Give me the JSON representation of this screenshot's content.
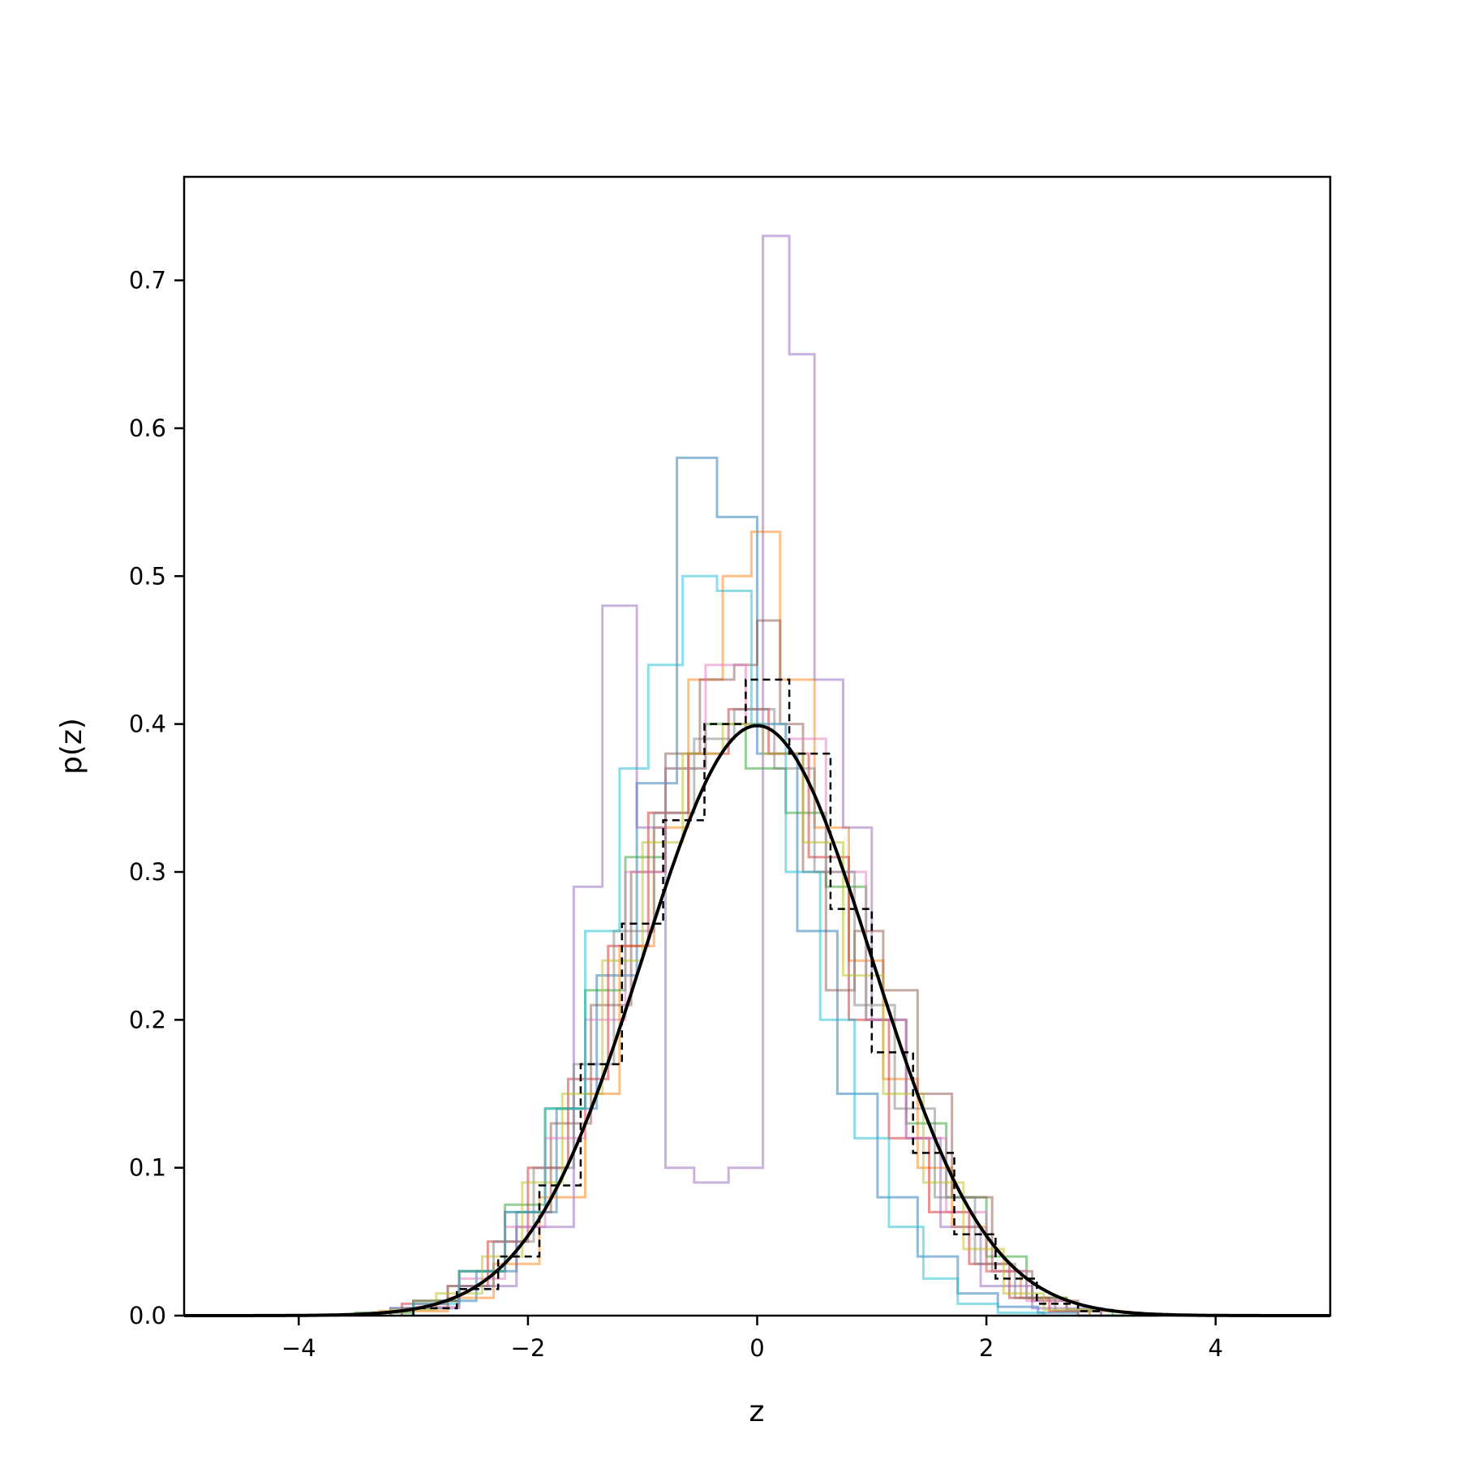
{
  "chart_data": {
    "type": "line",
    "title": "",
    "xlabel": "z",
    "ylabel": "p(z)",
    "xlim": [
      -5,
      5
    ],
    "ylim": [
      0,
      0.77
    ],
    "x_ticks": [
      -4,
      -2,
      0,
      2,
      4
    ],
    "x_tick_labels": [
      "−4",
      "−2",
      "0",
      "2",
      "4"
    ],
    "y_ticks": [
      0.0,
      0.1,
      0.2,
      0.3,
      0.4,
      0.5,
      0.6,
      0.7
    ],
    "y_tick_labels": [
      "0.0",
      "0.1",
      "0.2",
      "0.3",
      "0.4",
      "0.5",
      "0.6",
      "0.7"
    ],
    "grid": false,
    "legend": "none",
    "curve": {
      "kind": "standard normal density",
      "mean": 0,
      "std": 1,
      "color": "#000000"
    },
    "histograms": [
      {
        "color": "#000000",
        "style": "dashed",
        "bin_edges": [
          -3.0,
          -2.62,
          -2.26,
          -1.9,
          -1.54,
          -1.18,
          -0.82,
          -0.46,
          -0.1,
          0.28,
          0.64,
          1.0,
          1.36,
          1.72,
          2.08,
          2.44,
          2.8,
          3.0
        ],
        "values": [
          0.005,
          0.018,
          0.04,
          0.088,
          0.17,
          0.265,
          0.335,
          0.4,
          0.43,
          0.38,
          0.275,
          0.178,
          0.11,
          0.055,
          0.025,
          0.008,
          0.003
        ]
      },
      {
        "color": "#1f77b4",
        "style": "solid",
        "bin_edges": [
          -3.2,
          -2.8,
          -2.45,
          -2.1,
          -1.75,
          -1.4,
          -1.05,
          -0.7,
          -0.35,
          0.0,
          0.35,
          0.7,
          1.05,
          1.4,
          1.75,
          2.1,
          2.45,
          2.8,
          3.2
        ],
        "values": [
          0.005,
          0.01,
          0.03,
          0.07,
          0.14,
          0.23,
          0.36,
          0.58,
          0.54,
          0.38,
          0.26,
          0.15,
          0.08,
          0.04,
          0.015,
          0.006,
          0.002,
          0.0
        ]
      },
      {
        "color": "#ff7f0e",
        "style": "solid",
        "bin_edges": [
          -3.3,
          -2.7,
          -2.3,
          -1.9,
          -1.5,
          -1.2,
          -0.9,
          -0.6,
          -0.3,
          -0.05,
          0.2,
          0.5,
          0.8,
          1.1,
          1.4,
          1.7,
          2.0,
          2.3,
          2.7,
          3.2
        ],
        "values": [
          0.003,
          0.012,
          0.035,
          0.08,
          0.15,
          0.25,
          0.33,
          0.43,
          0.5,
          0.53,
          0.43,
          0.33,
          0.24,
          0.16,
          0.1,
          0.06,
          0.03,
          0.012,
          0.003
        ]
      },
      {
        "color": "#2ca02c",
        "style": "solid",
        "bin_edges": [
          -3.5,
          -3.0,
          -2.6,
          -2.2,
          -1.85,
          -1.5,
          -1.15,
          -0.8,
          -0.45,
          -0.1,
          0.25,
          0.6,
          0.95,
          1.3,
          1.65,
          2.0,
          2.35,
          2.7,
          3.1,
          3.5
        ],
        "values": [
          0.002,
          0.01,
          0.03,
          0.075,
          0.14,
          0.22,
          0.31,
          0.37,
          0.4,
          0.37,
          0.34,
          0.29,
          0.2,
          0.13,
          0.08,
          0.04,
          0.012,
          0.004,
          0.0
        ]
      },
      {
        "color": "#d62728",
        "style": "solid",
        "bin_edges": [
          -3.1,
          -2.7,
          -2.35,
          -2.0,
          -1.65,
          -1.3,
          -0.95,
          -0.6,
          -0.25,
          0.1,
          0.45,
          0.8,
          1.15,
          1.5,
          1.85,
          2.2,
          2.55,
          2.9
        ],
        "values": [
          0.008,
          0.02,
          0.05,
          0.1,
          0.16,
          0.25,
          0.34,
          0.38,
          0.41,
          0.38,
          0.31,
          0.2,
          0.12,
          0.07,
          0.035,
          0.012,
          0.003
        ]
      },
      {
        "color": "#9467bd",
        "style": "solid",
        "bin_edges": [
          -3.2,
          -2.6,
          -2.1,
          -1.6,
          -1.35,
          -1.05,
          -0.8,
          -0.55,
          -0.25,
          0.05,
          0.28,
          0.5,
          0.75,
          1.0,
          1.3,
          1.6,
          1.95,
          2.4,
          3.0
        ],
        "values": [
          0.005,
          0.02,
          0.06,
          0.29,
          0.48,
          0.33,
          0.1,
          0.09,
          0.1,
          0.73,
          0.65,
          0.43,
          0.33,
          0.2,
          0.12,
          0.06,
          0.02,
          0.005
        ]
      },
      {
        "color": "#8c564b",
        "style": "solid",
        "bin_edges": [
          -3.0,
          -2.6,
          -2.2,
          -1.8,
          -1.45,
          -1.1,
          -0.8,
          -0.5,
          -0.2,
          0.0,
          0.2,
          0.4,
          0.6,
          0.85,
          1.1,
          1.4,
          1.7,
          2.05,
          2.4,
          2.8
        ],
        "values": [
          0.01,
          0.03,
          0.07,
          0.13,
          0.21,
          0.3,
          0.38,
          0.43,
          0.44,
          0.47,
          0.4,
          0.3,
          0.22,
          0.26,
          0.22,
          0.15,
          0.08,
          0.03,
          0.01
        ]
      },
      {
        "color": "#e377c2",
        "style": "solid",
        "bin_edges": [
          -3.0,
          -2.6,
          -2.2,
          -1.85,
          -1.5,
          -1.15,
          -0.8,
          -0.45,
          -0.1,
          0.25,
          0.6,
          0.95,
          1.3,
          1.65,
          2.0,
          2.35,
          2.7,
          3.0
        ],
        "values": [
          0.006,
          0.025,
          0.06,
          0.12,
          0.2,
          0.3,
          0.37,
          0.44,
          0.4,
          0.39,
          0.3,
          0.2,
          0.12,
          0.07,
          0.03,
          0.01,
          0.003
        ]
      },
      {
        "color": "#7f7f7f",
        "style": "solid",
        "bin_edges": [
          -3.1,
          -2.7,
          -2.3,
          -1.95,
          -1.6,
          -1.25,
          -0.9,
          -0.55,
          -0.2,
          0.15,
          0.5,
          0.85,
          1.2,
          1.55,
          1.9,
          2.25,
          2.6,
          3.0
        ],
        "values": [
          0.005,
          0.02,
          0.05,
          0.1,
          0.17,
          0.26,
          0.34,
          0.39,
          0.41,
          0.37,
          0.3,
          0.21,
          0.14,
          0.08,
          0.035,
          0.012,
          0.003
        ]
      },
      {
        "color": "#bcbd22",
        "style": "solid",
        "bin_edges": [
          -3.2,
          -2.8,
          -2.4,
          -2.05,
          -1.7,
          -1.35,
          -1.0,
          -0.65,
          -0.3,
          0.05,
          0.4,
          0.75,
          1.1,
          1.45,
          1.8,
          2.15,
          2.5,
          2.9
        ],
        "values": [
          0.004,
          0.015,
          0.04,
          0.09,
          0.15,
          0.24,
          0.32,
          0.38,
          0.4,
          0.38,
          0.32,
          0.23,
          0.15,
          0.09,
          0.045,
          0.015,
          0.004
        ]
      },
      {
        "color": "#17becf",
        "style": "solid",
        "bin_edges": [
          -3.0,
          -2.6,
          -2.2,
          -1.85,
          -1.5,
          -1.2,
          -0.95,
          -0.65,
          -0.35,
          -0.05,
          0.25,
          0.55,
          0.85,
          1.15,
          1.45,
          1.75,
          2.1,
          2.5
        ],
        "values": [
          0.008,
          0.03,
          0.07,
          0.14,
          0.26,
          0.37,
          0.44,
          0.5,
          0.49,
          0.4,
          0.3,
          0.2,
          0.12,
          0.06,
          0.025,
          0.008,
          0.002
        ]
      }
    ]
  }
}
